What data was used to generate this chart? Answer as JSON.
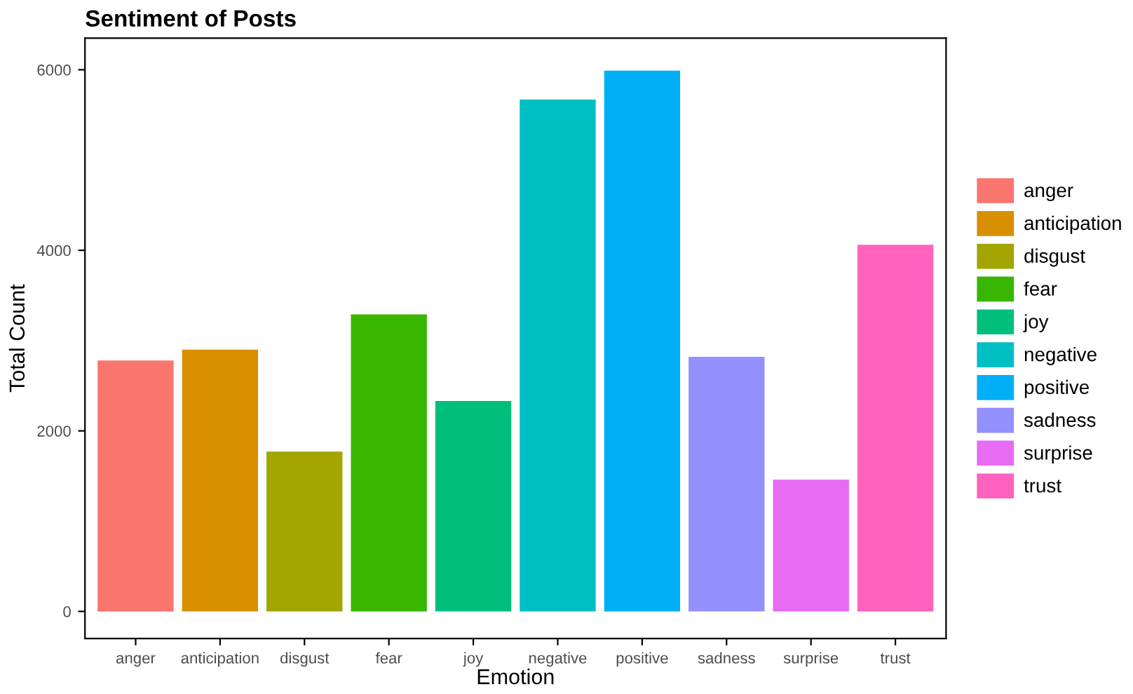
{
  "chart_data": {
    "type": "bar",
    "title": "Sentiment of Posts",
    "xlabel": "Emotion",
    "ylabel": "Total Count",
    "categories": [
      "anger",
      "anticipation",
      "disgust",
      "fear",
      "joy",
      "negative",
      "positive",
      "sadness",
      "surprise",
      "trust"
    ],
    "series": [
      {
        "name": "anger",
        "color": "#f8766d",
        "values": [
          2780,
          null,
          null,
          null,
          null,
          null,
          null,
          null,
          null,
          null
        ]
      },
      {
        "name": "anticipation",
        "color": "#d89000",
        "values": [
          null,
          2900,
          null,
          null,
          null,
          null,
          null,
          null,
          null,
          null
        ]
      },
      {
        "name": "disgust",
        "color": "#a3a500",
        "values": [
          null,
          null,
          1770,
          null,
          null,
          null,
          null,
          null,
          null,
          null
        ]
      },
      {
        "name": "fear",
        "color": "#39b600",
        "values": [
          null,
          null,
          null,
          3290,
          null,
          null,
          null,
          null,
          null,
          null
        ]
      },
      {
        "name": "joy",
        "color": "#00bf7d",
        "values": [
          null,
          null,
          null,
          null,
          2330,
          null,
          null,
          null,
          null,
          null
        ]
      },
      {
        "name": "negative",
        "color": "#00bfc4",
        "values": [
          null,
          null,
          null,
          null,
          null,
          5670,
          null,
          null,
          null,
          null
        ]
      },
      {
        "name": "positive",
        "color": "#00b0f6",
        "values": [
          null,
          null,
          null,
          null,
          null,
          null,
          5990,
          null,
          null,
          null
        ]
      },
      {
        "name": "sadness",
        "color": "#9590ff",
        "values": [
          null,
          null,
          null,
          null,
          null,
          null,
          null,
          2820,
          null,
          null
        ]
      },
      {
        "name": "surprise",
        "color": "#e76bf3",
        "values": [
          null,
          null,
          null,
          null,
          null,
          null,
          null,
          null,
          1460,
          null
        ]
      },
      {
        "name": "trust",
        "color": "#ff62bc",
        "values": [
          null,
          null,
          null,
          null,
          null,
          null,
          null,
          null,
          null,
          4060
        ]
      }
    ],
    "ylim": [
      -300,
      6350
    ],
    "yticks": [
      0,
      2000,
      4000,
      6000
    ],
    "grid": false,
    "legend": "right"
  }
}
